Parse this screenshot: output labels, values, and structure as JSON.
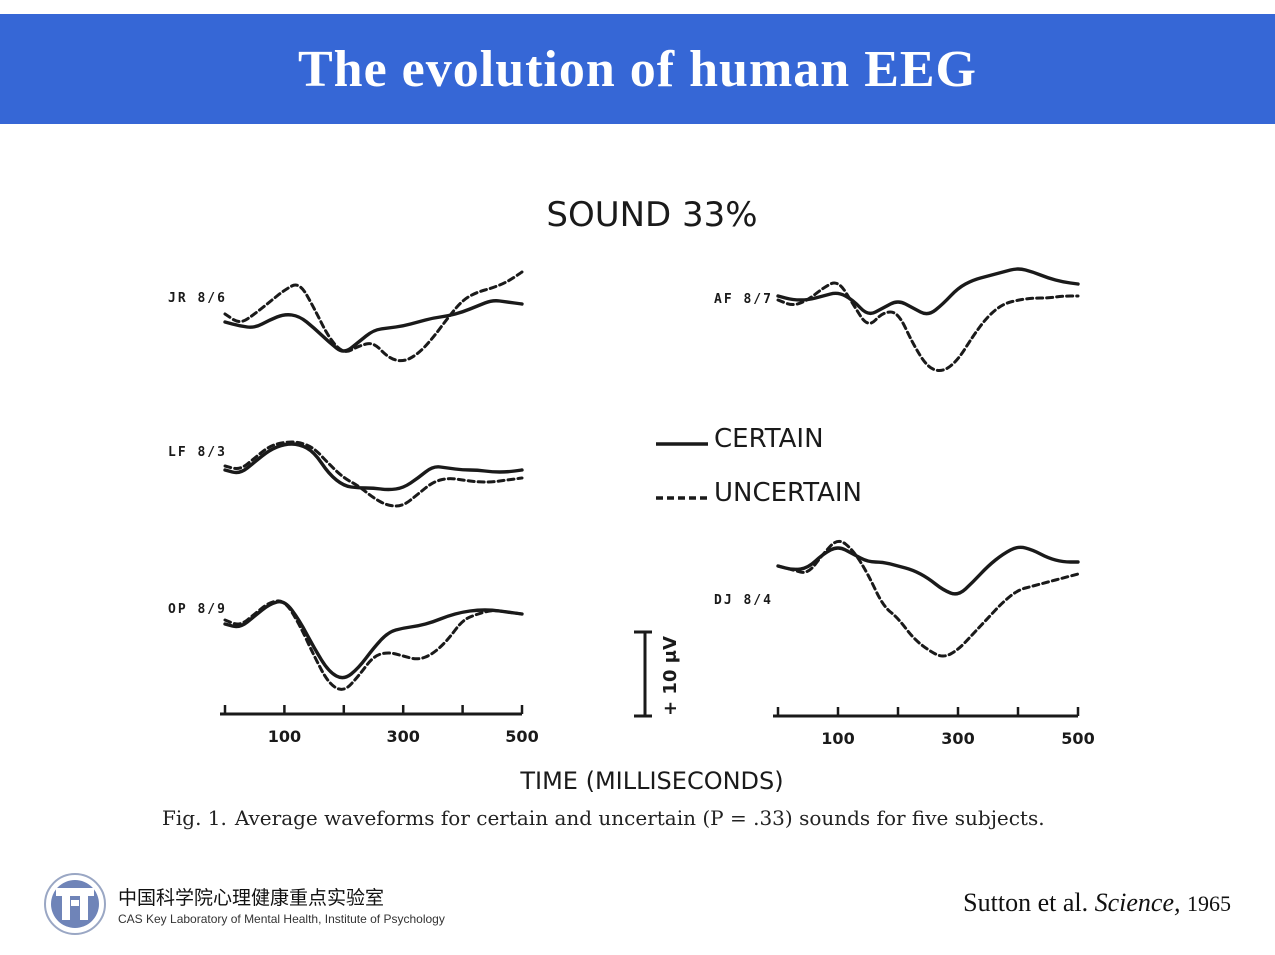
{
  "slide": {
    "title": "The evolution of human EEG",
    "banner_color": "#3667d6",
    "caption": {
      "fig_label": "Fig. 1.",
      "text": "Average waveforms for certain and uncertain (P = .33) sounds for five subjects."
    },
    "organization": {
      "name_cn": "中国科学院心理健康重点实验室",
      "name_en": "CAS Key Laboratory of Mental Health, Institute of Psychology"
    },
    "citation": {
      "authors": "Sutton et al.",
      "journal": "Science,",
      "year": "1965"
    }
  },
  "chart_data": {
    "type": "line",
    "title": "SOUND 33%",
    "xlabel": "TIME (MILLISECONDS)",
    "xlim": [
      0,
      500
    ],
    "x_ticks": [
      100,
      300,
      500
    ],
    "scale_bar_label": "+ 10 μV",
    "legend": {
      "position": "center",
      "entries": [
        {
          "name": "CERTAIN",
          "style": "solid"
        },
        {
          "name": "UNCERTAIN",
          "style": "dashed"
        }
      ]
    },
    "panels": [
      {
        "subject": "JR 8/6",
        "x": [
          0,
          25,
          50,
          75,
          100,
          125,
          150,
          175,
          200,
          225,
          250,
          275,
          300,
          325,
          350,
          375,
          400,
          425,
          450,
          475,
          500
        ],
        "series": [
          {
            "name": "CERTAIN",
            "values": [
              -2,
              -4,
              -5,
              -1,
              2,
              1,
              -5,
              -12,
              -18,
              -12,
              -6,
              -5,
              -4,
              -2,
              0,
              1,
              3,
              6,
              9,
              8,
              7
            ]
          },
          {
            "name": "UNCERTAIN",
            "values": [
              2,
              -3,
              2,
              8,
              14,
              18,
              5,
              -10,
              -18,
              -14,
              -12,
              -20,
              -22,
              -18,
              -10,
              0,
              9,
              13,
              15,
              18,
              23
            ]
          }
        ]
      },
      {
        "subject": "LF 8/3",
        "x": [
          0,
          25,
          50,
          75,
          100,
          125,
          150,
          175,
          200,
          225,
          250,
          275,
          300,
          325,
          350,
          375,
          400,
          425,
          450,
          475,
          500
        ],
        "series": [
          {
            "name": "CERTAIN",
            "values": [
              0,
              -2,
              4,
              10,
              13,
              13,
              9,
              -2,
              -8,
              -9,
              -9,
              -10,
              -9,
              -4,
              2,
              1,
              0,
              0,
              -1,
              -1,
              0
            ]
          },
          {
            "name": "UNCERTAIN",
            "values": [
              2,
              0,
              6,
              12,
              14,
              14,
              11,
              3,
              -4,
              -8,
              -14,
              -18,
              -18,
              -12,
              -6,
              -4,
              -5,
              -6,
              -6,
              -5,
              -4
            ]
          }
        ]
      },
      {
        "subject": "OP 8/9",
        "x": [
          0,
          25,
          50,
          75,
          100,
          125,
          150,
          175,
          200,
          225,
          250,
          275,
          300,
          325,
          350,
          375,
          400,
          425,
          450,
          475,
          500
        ],
        "series": [
          {
            "name": "CERTAIN",
            "values": [
              -2,
              -4,
              2,
              8,
              10,
              0,
              -14,
              -26,
              -30,
              -24,
              -14,
              -6,
              -4,
              -3,
              -1,
              2,
              4,
              5,
              5,
              4,
              3
            ]
          },
          {
            "name": "UNCERTAIN",
            "values": [
              0,
              -3,
              3,
              9,
              10,
              -2,
              -18,
              -32,
              -36,
              -28,
              -18,
              -16,
              -18,
              -20,
              -17,
              -10,
              0,
              3,
              5,
              4,
              3
            ]
          }
        ]
      },
      {
        "subject": "AF 8/7",
        "x": [
          0,
          25,
          50,
          75,
          100,
          125,
          150,
          175,
          200,
          225,
          250,
          275,
          300,
          325,
          350,
          375,
          400,
          425,
          450,
          475,
          500
        ],
        "series": [
          {
            "name": "CERTAIN",
            "values": [
              2,
              0,
              0,
              2,
              4,
              0,
              -8,
              -4,
              0,
              -4,
              -8,
              -2,
              6,
              10,
              12,
              14,
              16,
              14,
              11,
              9,
              8
            ]
          },
          {
            "name": "UNCERTAIN",
            "values": [
              0,
              -3,
              0,
              6,
              10,
              -2,
              -14,
              -6,
              -6,
              -22,
              -34,
              -36,
              -30,
              -18,
              -8,
              -2,
              0,
              1,
              1,
              2,
              2
            ]
          }
        ]
      },
      {
        "subject": "DJ 8/4",
        "x": [
          0,
          25,
          50,
          75,
          100,
          125,
          150,
          175,
          200,
          225,
          250,
          275,
          300,
          325,
          350,
          375,
          400,
          425,
          450,
          475,
          500
        ],
        "series": [
          {
            "name": "CERTAIN",
            "values": [
              2,
              0,
              1,
              8,
              12,
              8,
              4,
              4,
              2,
              0,
              -4,
              -10,
              -13,
              -6,
              2,
              8,
              12,
              10,
              6,
              4,
              4
            ]
          },
          {
            "name": "UNCERTAIN",
            "values": [
              2,
              0,
              -2,
              8,
              16,
              10,
              -2,
              -18,
              -24,
              -34,
              -40,
              -44,
              -40,
              -32,
              -24,
              -16,
              -10,
              -8,
              -6,
              -4,
              -2
            ]
          }
        ]
      }
    ]
  }
}
